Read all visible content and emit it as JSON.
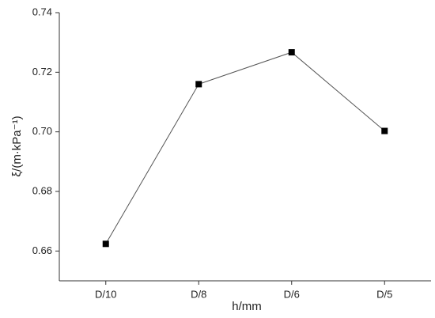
{
  "chart_data": {
    "type": "line",
    "x_label": "h/mm",
    "y_label": "ξ/(m·kPa⁻¹)",
    "categories": [
      "D/10",
      "D/8",
      "D/6",
      "D/5"
    ],
    "values": [
      0.6624,
      0.716,
      0.7267,
      0.7003
    ],
    "color": "#000000",
    "ylim": [
      0.65,
      0.74
    ],
    "yticks": [
      0.66,
      0.68,
      {
        "value": 0.7,
        "label": "0.70"
      },
      0.72,
      0.74
    ]
  }
}
